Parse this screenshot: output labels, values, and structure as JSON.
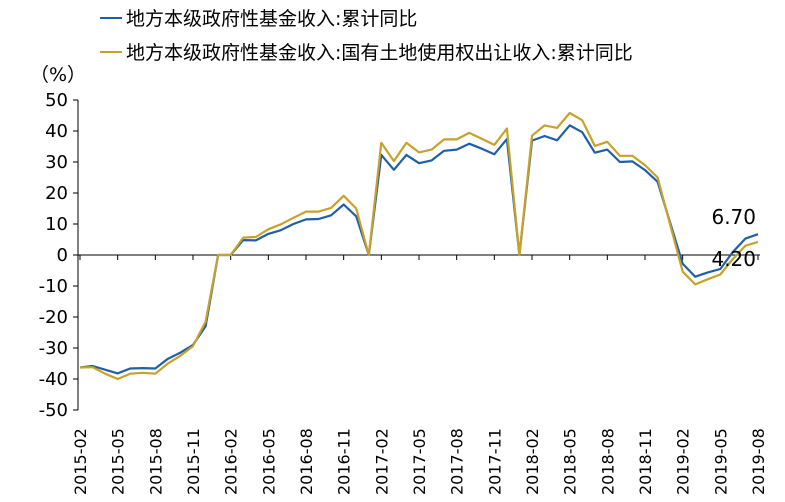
{
  "chart_data": {
    "type": "line",
    "unit_label": "（%）",
    "ylim": [
      -50,
      50
    ],
    "y_ticks": [
      50,
      40,
      30,
      20,
      10,
      0,
      -10,
      -20,
      -30,
      -40,
      -50
    ],
    "x_tick_labels": [
      "2015-02",
      "2015-05",
      "2015-08",
      "2015-11",
      "2016-02",
      "2016-05",
      "2016-08",
      "2016-11",
      "2017-02",
      "2017-05",
      "2017-08",
      "2017-11",
      "2018-02",
      "2018-05",
      "2018-08",
      "2018-11",
      "2019-02",
      "2019-05",
      "2019-08"
    ],
    "legend_position": "top",
    "grid": false,
    "series": [
      {
        "name": "地方本级政府性基金收入:累计同比",
        "color": "#1f5fa8",
        "points": [
          [
            "2015-02",
            -36.3
          ],
          [
            "2015-03",
            -35.8
          ],
          [
            "2015-04",
            -37.0
          ],
          [
            "2015-05",
            -38.2
          ],
          [
            "2015-06",
            -36.6
          ],
          [
            "2015-07",
            -36.5
          ],
          [
            "2015-08",
            -36.6
          ],
          [
            "2015-09",
            -33.5
          ],
          [
            "2015-10",
            -31.5
          ],
          [
            "2015-11",
            -29.0
          ],
          [
            "2015-12",
            -23.0
          ],
          [
            "2016-01",
            0.0
          ],
          [
            "2016-02",
            0.0
          ],
          [
            "2016-03",
            4.8
          ],
          [
            "2016-04",
            4.7
          ],
          [
            "2016-05",
            6.8
          ],
          [
            "2016-06",
            8.0
          ],
          [
            "2016-07",
            10.0
          ],
          [
            "2016-08",
            11.5
          ],
          [
            "2016-09",
            11.6
          ],
          [
            "2016-10",
            12.8
          ],
          [
            "2016-11",
            16.3
          ],
          [
            "2016-12",
            12.5
          ],
          [
            "2017-01",
            0.0
          ],
          [
            "2017-02",
            32.3
          ],
          [
            "2017-03",
            27.5
          ],
          [
            "2017-04",
            32.3
          ],
          [
            "2017-05",
            29.6
          ],
          [
            "2017-06",
            30.5
          ],
          [
            "2017-07",
            33.6
          ],
          [
            "2017-08",
            34.0
          ],
          [
            "2017-09",
            35.9
          ],
          [
            "2017-10",
            34.3
          ],
          [
            "2017-11",
            32.5
          ],
          [
            "2017-12",
            37.4
          ],
          [
            "2018-01",
            0.0
          ],
          [
            "2018-02",
            36.9
          ],
          [
            "2018-03",
            38.4
          ],
          [
            "2018-04",
            37.0
          ],
          [
            "2018-05",
            41.8
          ],
          [
            "2018-06",
            39.6
          ],
          [
            "2018-07",
            33.0
          ],
          [
            "2018-08",
            34.0
          ],
          [
            "2018-09",
            30.0
          ],
          [
            "2018-10",
            30.2
          ],
          [
            "2018-11",
            27.4
          ],
          [
            "2018-12",
            23.6
          ],
          [
            "2019-02",
            -2.8
          ],
          [
            "2019-03",
            -7.0
          ],
          [
            "2019-04",
            -5.6
          ],
          [
            "2019-05",
            -4.5
          ],
          [
            "2019-06",
            1.0
          ],
          [
            "2019-07",
            5.3
          ],
          [
            "2019-08",
            6.7
          ]
        ]
      },
      {
        "name": "地方本级政府性基金收入:国有土地使用权出让收入:累计同比",
        "color": "#c7a22a",
        "points": [
          [
            "2015-02",
            -36.3
          ],
          [
            "2015-03",
            -36.2
          ],
          [
            "2015-04",
            -38.3
          ],
          [
            "2015-05",
            -40.0
          ],
          [
            "2015-06",
            -38.3
          ],
          [
            "2015-07",
            -38.0
          ],
          [
            "2015-08",
            -38.3
          ],
          [
            "2015-09",
            -35.0
          ],
          [
            "2015-10",
            -32.5
          ],
          [
            "2015-11",
            -29.4
          ],
          [
            "2015-12",
            -21.5
          ],
          [
            "2016-01",
            0.0
          ],
          [
            "2016-02",
            0.0
          ],
          [
            "2016-03",
            5.6
          ],
          [
            "2016-04",
            5.8
          ],
          [
            "2016-05",
            8.3
          ],
          [
            "2016-06",
            9.9
          ],
          [
            "2016-07",
            12.0
          ],
          [
            "2016-08",
            14.0
          ],
          [
            "2016-09",
            14.0
          ],
          [
            "2016-10",
            15.2
          ],
          [
            "2016-11",
            19.1
          ],
          [
            "2016-12",
            15.0
          ],
          [
            "2017-01",
            0.0
          ],
          [
            "2017-02",
            36.2
          ],
          [
            "2017-03",
            30.3
          ],
          [
            "2017-04",
            36.2
          ],
          [
            "2017-05",
            33.1
          ],
          [
            "2017-06",
            34.0
          ],
          [
            "2017-07",
            37.3
          ],
          [
            "2017-08",
            37.3
          ],
          [
            "2017-09",
            39.4
          ],
          [
            "2017-10",
            37.5
          ],
          [
            "2017-11",
            35.5
          ],
          [
            "2017-12",
            40.8
          ],
          [
            "2018-01",
            0.0
          ],
          [
            "2018-02",
            38.5
          ],
          [
            "2018-03",
            41.8
          ],
          [
            "2018-04",
            41.0
          ],
          [
            "2018-05",
            45.8
          ],
          [
            "2018-06",
            43.5
          ],
          [
            "2018-07",
            35.2
          ],
          [
            "2018-08",
            36.5
          ],
          [
            "2018-09",
            32.0
          ],
          [
            "2018-10",
            32.0
          ],
          [
            "2018-11",
            29.0
          ],
          [
            "2018-12",
            25.0
          ],
          [
            "2019-02",
            -5.4
          ],
          [
            "2019-03",
            -9.5
          ],
          [
            "2019-04",
            -7.8
          ],
          [
            "2019-05",
            -6.3
          ],
          [
            "2019-06",
            -1.3
          ],
          [
            "2019-07",
            3.0
          ],
          [
            "2019-08",
            4.2
          ]
        ]
      }
    ],
    "end_labels": [
      "6.70",
      "4.20"
    ]
  }
}
